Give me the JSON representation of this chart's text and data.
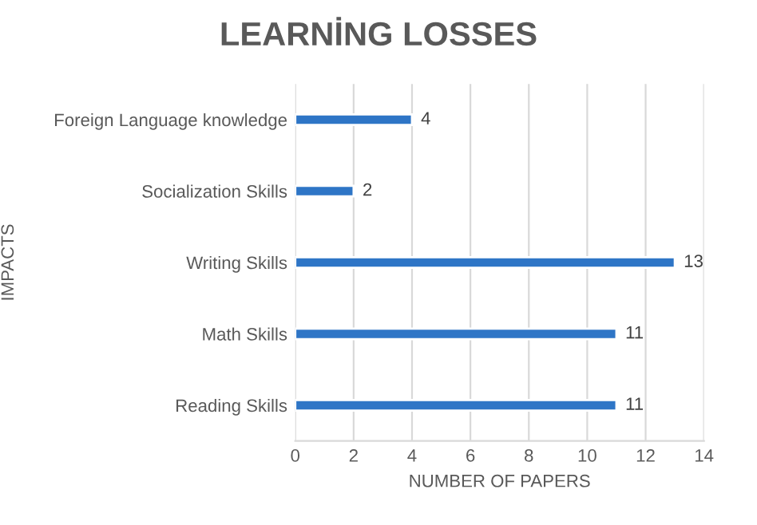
{
  "chart_data": {
    "type": "bar",
    "orientation": "horizontal",
    "title": "LEARNİNG LOSSES",
    "xlabel": "NUMBER OF PAPERS",
    "ylabel": "IMPACTS",
    "categories": [
      "Foreign Language knowledge",
      "Socialization Skills",
      "Writing Skills",
      "Math Skills",
      "Reading Skills"
    ],
    "values": [
      4,
      2,
      13,
      11,
      11
    ],
    "color": "#2e75c6",
    "xlim": [
      0,
      14
    ],
    "xticks": [
      0,
      2,
      4,
      6,
      8,
      10,
      12,
      14
    ],
    "grid": "x",
    "data_labels": true
  }
}
